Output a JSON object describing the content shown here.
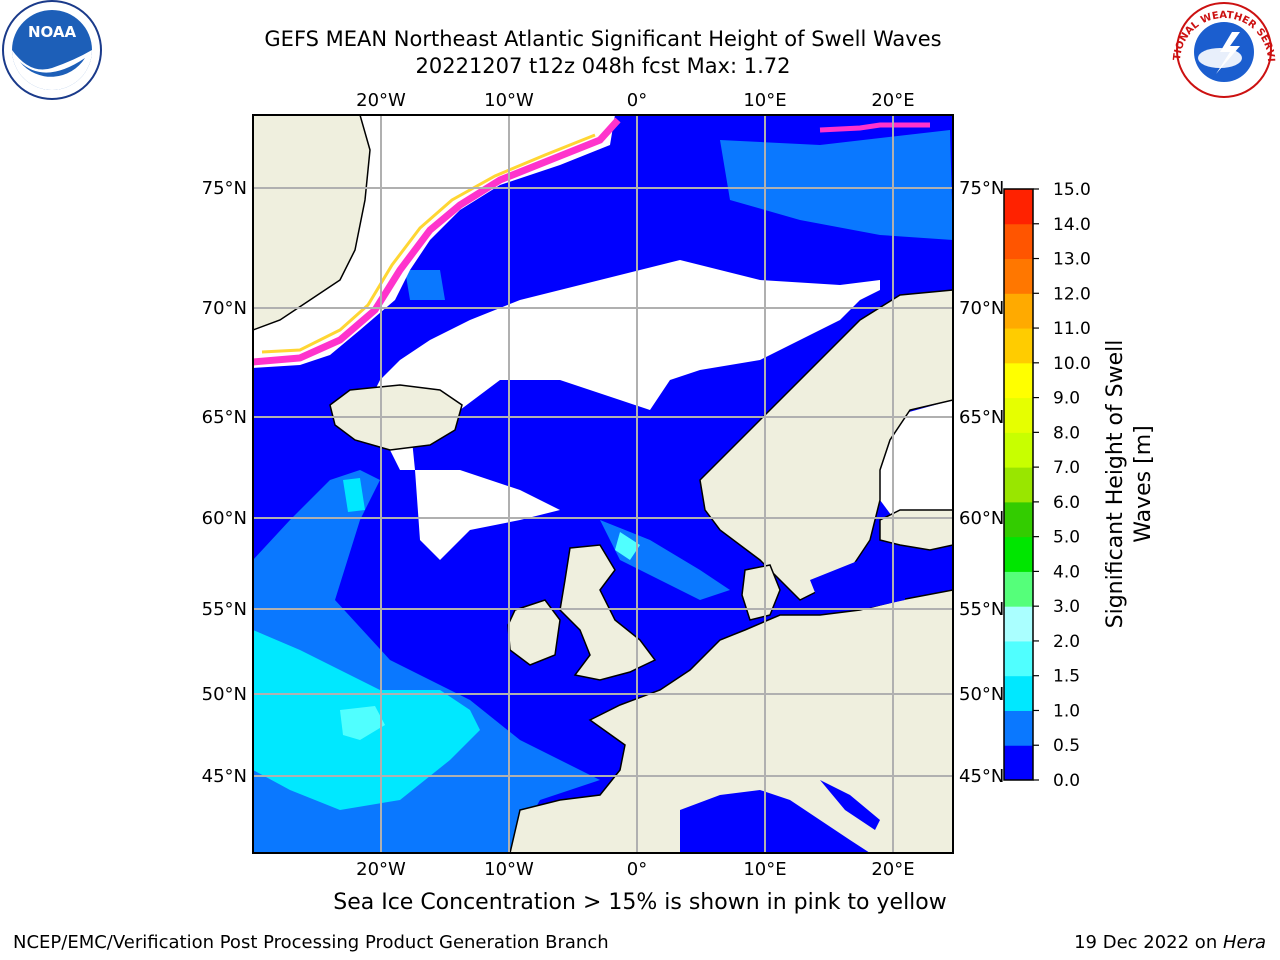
{
  "title_line1": "GEFS MEAN Northeast Atlantic Significant Height of Swell Waves",
  "title_line2": "20221207 t12z 048h fcst   Max: 1.72",
  "lon_labels": [
    "20°W",
    "10°W",
    "0°",
    "10°E",
    "20°E"
  ],
  "lat_labels": [
    "75°N",
    "70°N",
    "65°N",
    "60°N",
    "55°N",
    "50°N",
    "45°N"
  ],
  "colorbar": {
    "label_line1": "Significant Height of Swell",
    "label_line2": "Waves [m]",
    "ticks": [
      "0.0",
      "0.5",
      "1.0",
      "1.5",
      "2.0",
      "3.0",
      "4.0",
      "5.0",
      "6.0",
      "7.0",
      "8.0",
      "9.0",
      "10.0",
      "11.0",
      "12.0",
      "13.0",
      "14.0",
      "15.0"
    ],
    "colors": [
      "#0000ff",
      "#0a78ff",
      "#00e8ff",
      "#50ffff",
      "#aaffff",
      "#55ff7a",
      "#00e600",
      "#33cc00",
      "#99e600",
      "#c8ff00",
      "#e6ff00",
      "#ffff00",
      "#ffcc00",
      "#ffaa00",
      "#ff7700",
      "#ff5500",
      "#ff2200"
    ]
  },
  "ice_note": "Sea Ice Concentration > 15% is shown in pink to yellow",
  "footer_left": "NCEP/EMC/Verification Post Processing Product Generation Branch",
  "footer_date": "19 Dec 2022 on ",
  "footer_host": "Hera",
  "noaa_logo_text": "NOAA",
  "nws_logo_text": "NATIONAL WEATHER SERVICE"
}
